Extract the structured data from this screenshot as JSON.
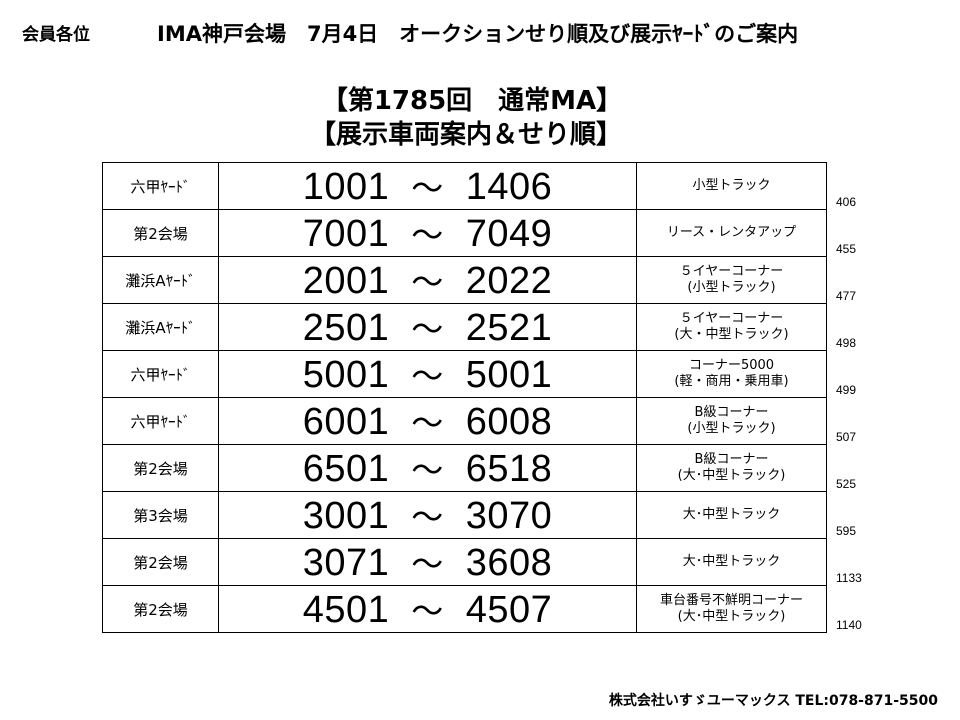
{
  "header": {
    "recipients": "会員各位",
    "title": "IMA神戸会場　7月4日　オークションせり順及び展示ﾔｰﾄﾞのご案内"
  },
  "subtitle": {
    "line1": "【第1785回　通常MA】",
    "line2": "【展示車両案内＆せり順】"
  },
  "rows": [
    {
      "location": "六甲ﾔｰﾄﾞ",
      "start": "1001",
      "end": "1406",
      "category": [
        "小型トラック"
      ],
      "cumulative": "406"
    },
    {
      "location": "第2会場",
      "start": "7001",
      "end": "7049",
      "category": [
        "リース・レンタアップ"
      ],
      "cumulative": "455"
    },
    {
      "location": "灘浜Aﾔｰﾄﾞ",
      "start": "2001",
      "end": "2022",
      "category": [
        "５イヤーコーナー",
        "(小型トラック)"
      ],
      "cumulative": "477"
    },
    {
      "location": "灘浜Aﾔｰﾄﾞ",
      "start": "2501",
      "end": "2521",
      "category": [
        "５イヤーコーナー",
        "(大・中型トラック)"
      ],
      "cumulative": "498"
    },
    {
      "location": "六甲ﾔｰﾄﾞ",
      "start": "5001",
      "end": "5001",
      "category": [
        "コーナー5000",
        "(軽・商用・乗用車)"
      ],
      "cumulative": "499"
    },
    {
      "location": "六甲ﾔｰﾄﾞ",
      "start": "6001",
      "end": "6008",
      "category": [
        "B級コーナー",
        "(小型トラック)"
      ],
      "cumulative": "507"
    },
    {
      "location": "第2会場",
      "start": "6501",
      "end": "6518",
      "category": [
        "B級コーナー",
        "(大･中型トラック)"
      ],
      "cumulative": "525"
    },
    {
      "location": "第3会場",
      "start": "3001",
      "end": "3070",
      "category": [
        "大･中型トラック"
      ],
      "cumulative": "595"
    },
    {
      "location": "第2会場",
      "start": "3071",
      "end": "3608",
      "category": [
        "大･中型トラック"
      ],
      "cumulative": "1133"
    },
    {
      "location": "第2会場",
      "start": "4501",
      "end": "4507",
      "category": [
        "車台番号不鮮明コーナー",
        "(大･中型トラック)"
      ],
      "cumulative": "1140"
    }
  ],
  "range_separator": "～",
  "footer": {
    "company": "株式会社いすゞユーマックス",
    "phone": "TEL:078-871-5500"
  }
}
